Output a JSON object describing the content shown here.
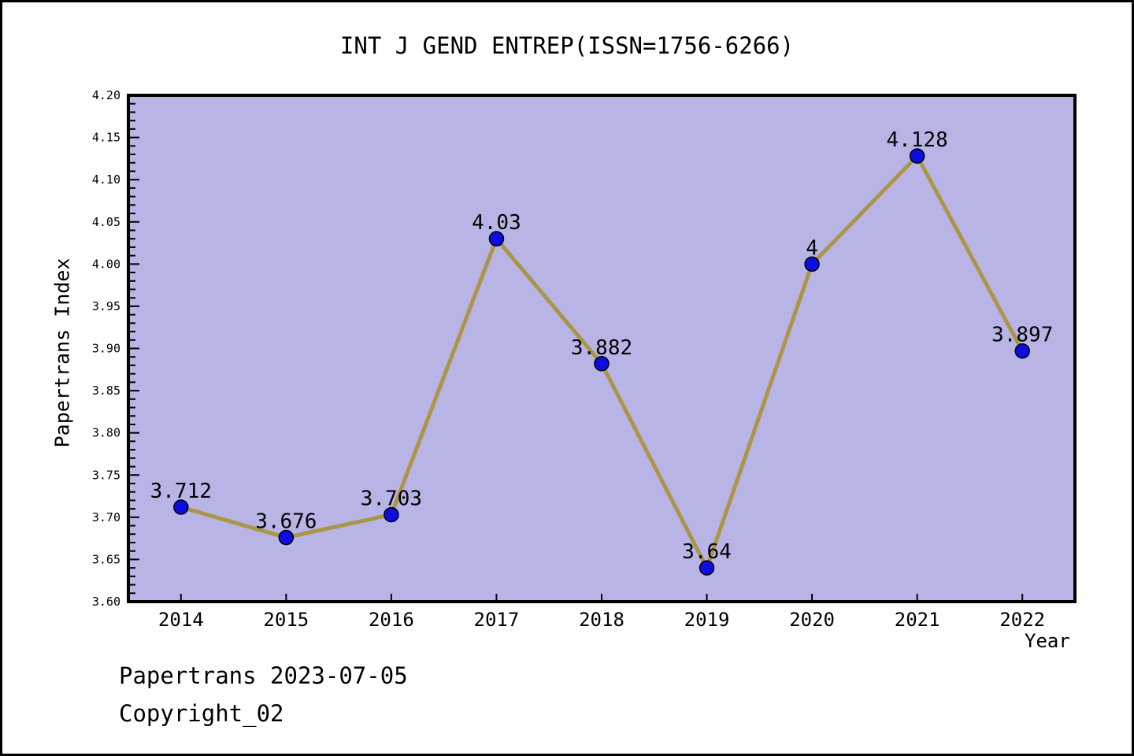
{
  "chart_data": {
    "type": "line",
    "title": "INT J GEND ENTREP(ISSN=1756-6266)",
    "xlabel": "Year",
    "ylabel": "Papertrans Index",
    "categories": [
      "2014",
      "2015",
      "2016",
      "2017",
      "2018",
      "2019",
      "2020",
      "2021",
      "2022"
    ],
    "values": [
      3.712,
      3.676,
      3.703,
      4.03,
      3.882,
      3.64,
      4,
      4.128,
      3.897
    ],
    "point_labels": [
      "3.712",
      "3.676",
      "3.703",
      "4.03",
      "3.882",
      "3.64",
      "4",
      "4.128",
      "3.897"
    ],
    "ylim": [
      3.6,
      4.2
    ],
    "ytick_major": 0.05,
    "ytick_minor": 0.01,
    "grid": false,
    "legend_position": "none",
    "colors": {
      "line": "#aa9646",
      "marker": "#0d0de0",
      "marker_edge": "#000000",
      "plot_background": "#b9b4e6",
      "frame": "#000000",
      "text": "#000000"
    }
  },
  "footer": {
    "line1": "Papertrans 2023-07-05",
    "line2": "Copyright_02"
  }
}
